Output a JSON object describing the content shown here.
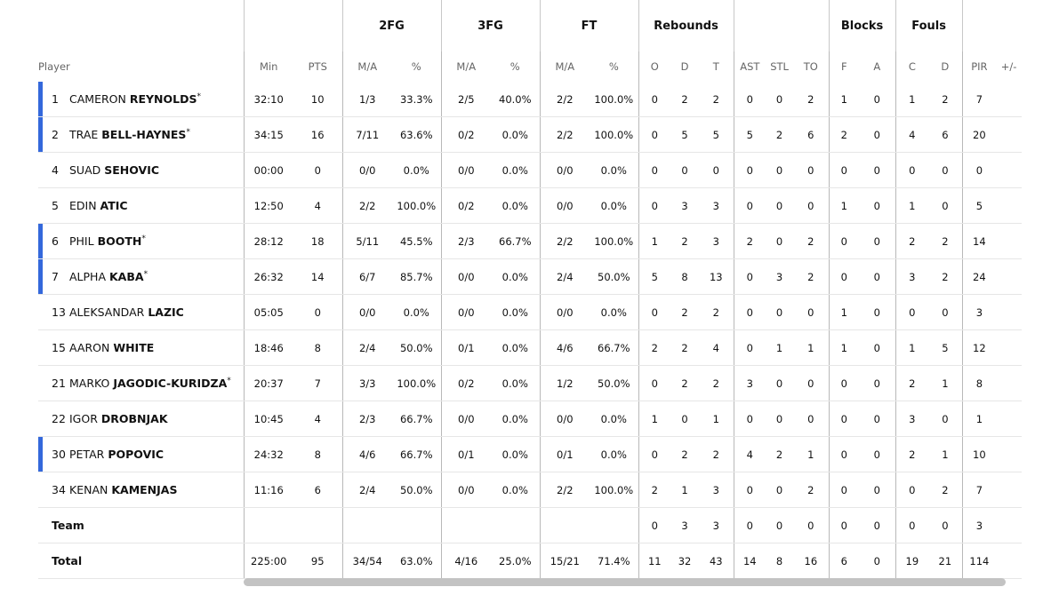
{
  "groups": {
    "fg2": "2FG",
    "fg3": "3FG",
    "ft": "FT",
    "rebounds": "Rebounds",
    "blocks": "Blocks",
    "fouls": "Fouls"
  },
  "headers": {
    "player": "Player",
    "min": "Min",
    "pts": "PTS",
    "fg2_ma": "M/A",
    "fg2_pct": "%",
    "fg3_ma": "M/A",
    "fg3_pct": "%",
    "ft_ma": "M/A",
    "ft_pct": "%",
    "o": "O",
    "d": "D",
    "t": "T",
    "ast": "AST",
    "stl": "STL",
    "to": "TO",
    "bf": "F",
    "ba": "A",
    "fc": "C",
    "fd": "D",
    "pir": "PIR",
    "pm": "+/-"
  },
  "players": [
    {
      "num": "1",
      "first": "CAMERON",
      "last": "REYNOLDS",
      "star": "*",
      "starter": true,
      "min": "32:10",
      "pts": "10",
      "fg2": "1/3",
      "fg2p": "33.3%",
      "fg3": "2/5",
      "fg3p": "40.0%",
      "ft": "2/2",
      "ftp": "100.0%",
      "o": "0",
      "d": "2",
      "t": "2",
      "ast": "0",
      "stl": "0",
      "to": "2",
      "bf": "1",
      "ba": "0",
      "fc": "1",
      "fd": "2",
      "pir": "7",
      "pm": ""
    },
    {
      "num": "2",
      "first": "TRAE",
      "last": "BELL-HAYNES",
      "star": "*",
      "starter": true,
      "min": "34:15",
      "pts": "16",
      "fg2": "7/11",
      "fg2p": "63.6%",
      "fg3": "0/2",
      "fg3p": "0.0%",
      "ft": "2/2",
      "ftp": "100.0%",
      "o": "0",
      "d": "5",
      "t": "5",
      "ast": "5",
      "stl": "2",
      "to": "6",
      "bf": "2",
      "ba": "0",
      "fc": "4",
      "fd": "6",
      "pir": "20",
      "pm": ""
    },
    {
      "num": "4",
      "first": "SUAD",
      "last": "SEHOVIC",
      "star": "",
      "starter": false,
      "min": "00:00",
      "pts": "0",
      "fg2": "0/0",
      "fg2p": "0.0%",
      "fg3": "0/0",
      "fg3p": "0.0%",
      "ft": "0/0",
      "ftp": "0.0%",
      "o": "0",
      "d": "0",
      "t": "0",
      "ast": "0",
      "stl": "0",
      "to": "0",
      "bf": "0",
      "ba": "0",
      "fc": "0",
      "fd": "0",
      "pir": "0",
      "pm": ""
    },
    {
      "num": "5",
      "first": "EDIN",
      "last": "ATIC",
      "star": "",
      "starter": false,
      "min": "12:50",
      "pts": "4",
      "fg2": "2/2",
      "fg2p": "100.0%",
      "fg3": "0/2",
      "fg3p": "0.0%",
      "ft": "0/0",
      "ftp": "0.0%",
      "o": "0",
      "d": "3",
      "t": "3",
      "ast": "0",
      "stl": "0",
      "to": "0",
      "bf": "1",
      "ba": "0",
      "fc": "1",
      "fd": "0",
      "pir": "5",
      "pm": ""
    },
    {
      "num": "6",
      "first": "PHIL",
      "last": "BOOTH",
      "star": "*",
      "starter": true,
      "min": "28:12",
      "pts": "18",
      "fg2": "5/11",
      "fg2p": "45.5%",
      "fg3": "2/3",
      "fg3p": "66.7%",
      "ft": "2/2",
      "ftp": "100.0%",
      "o": "1",
      "d": "2",
      "t": "3",
      "ast": "2",
      "stl": "0",
      "to": "2",
      "bf": "0",
      "ba": "0",
      "fc": "2",
      "fd": "2",
      "pir": "14",
      "pm": ""
    },
    {
      "num": "7",
      "first": "ALPHA",
      "last": "KABA",
      "star": "*",
      "starter": true,
      "min": "26:32",
      "pts": "14",
      "fg2": "6/7",
      "fg2p": "85.7%",
      "fg3": "0/0",
      "fg3p": "0.0%",
      "ft": "2/4",
      "ftp": "50.0%",
      "o": "5",
      "d": "8",
      "t": "13",
      "ast": "0",
      "stl": "3",
      "to": "2",
      "bf": "0",
      "ba": "0",
      "fc": "3",
      "fd": "2",
      "pir": "24",
      "pm": ""
    },
    {
      "num": "13",
      "first": "ALEKSANDAR",
      "last": "LAZIC",
      "star": "",
      "starter": false,
      "min": "05:05",
      "pts": "0",
      "fg2": "0/0",
      "fg2p": "0.0%",
      "fg3": "0/0",
      "fg3p": "0.0%",
      "ft": "0/0",
      "ftp": "0.0%",
      "o": "0",
      "d": "2",
      "t": "2",
      "ast": "0",
      "stl": "0",
      "to": "0",
      "bf": "1",
      "ba": "0",
      "fc": "0",
      "fd": "0",
      "pir": "3",
      "pm": ""
    },
    {
      "num": "15",
      "first": "AARON",
      "last": "WHITE",
      "star": "",
      "starter": false,
      "min": "18:46",
      "pts": "8",
      "fg2": "2/4",
      "fg2p": "50.0%",
      "fg3": "0/1",
      "fg3p": "0.0%",
      "ft": "4/6",
      "ftp": "66.7%",
      "o": "2",
      "d": "2",
      "t": "4",
      "ast": "0",
      "stl": "1",
      "to": "1",
      "bf": "1",
      "ba": "0",
      "fc": "1",
      "fd": "5",
      "pir": "12",
      "pm": ""
    },
    {
      "num": "21",
      "first": "MARKO",
      "last": "JAGODIC-KURIDZA",
      "star": "*",
      "starter": false,
      "min": "20:37",
      "pts": "7",
      "fg2": "3/3",
      "fg2p": "100.0%",
      "fg3": "0/2",
      "fg3p": "0.0%",
      "ft": "1/2",
      "ftp": "50.0%",
      "o": "0",
      "d": "2",
      "t": "2",
      "ast": "3",
      "stl": "0",
      "to": "0",
      "bf": "0",
      "ba": "0",
      "fc": "2",
      "fd": "1",
      "pir": "8",
      "pm": ""
    },
    {
      "num": "22",
      "first": "IGOR",
      "last": "DROBNJAK",
      "star": "",
      "starter": false,
      "min": "10:45",
      "pts": "4",
      "fg2": "2/3",
      "fg2p": "66.7%",
      "fg3": "0/0",
      "fg3p": "0.0%",
      "ft": "0/0",
      "ftp": "0.0%",
      "o": "1",
      "d": "0",
      "t": "1",
      "ast": "0",
      "stl": "0",
      "to": "0",
      "bf": "0",
      "ba": "0",
      "fc": "3",
      "fd": "0",
      "pir": "1",
      "pm": ""
    },
    {
      "num": "30",
      "first": "PETAR",
      "last": "POPOVIC",
      "star": "",
      "starter": true,
      "min": "24:32",
      "pts": "8",
      "fg2": "4/6",
      "fg2p": "66.7%",
      "fg3": "0/1",
      "fg3p": "0.0%",
      "ft": "0/1",
      "ftp": "0.0%",
      "o": "0",
      "d": "2",
      "t": "2",
      "ast": "4",
      "stl": "2",
      "to": "1",
      "bf": "0",
      "ba": "0",
      "fc": "2",
      "fd": "1",
      "pir": "10",
      "pm": ""
    },
    {
      "num": "34",
      "first": "KENAN",
      "last": "KAMENJAS",
      "star": "",
      "starter": false,
      "min": "11:16",
      "pts": "6",
      "fg2": "2/4",
      "fg2p": "50.0%",
      "fg3": "0/0",
      "fg3p": "0.0%",
      "ft": "2/2",
      "ftp": "100.0%",
      "o": "2",
      "d": "1",
      "t": "3",
      "ast": "0",
      "stl": "0",
      "to": "2",
      "bf": "0",
      "ba": "0",
      "fc": "0",
      "fd": "2",
      "pir": "7",
      "pm": ""
    }
  ],
  "team": {
    "label": "Team",
    "min": "",
    "pts": "",
    "fg2": "",
    "fg2p": "",
    "fg3": "",
    "fg3p": "",
    "ft": "",
    "ftp": "",
    "o": "0",
    "d": "3",
    "t": "3",
    "ast": "0",
    "stl": "0",
    "to": "0",
    "bf": "0",
    "ba": "0",
    "fc": "0",
    "fd": "0",
    "pir": "3",
    "pm": ""
  },
  "total": {
    "label": "Total",
    "min": "225:00",
    "pts": "95",
    "fg2": "34/54",
    "fg2p": "63.0%",
    "fg3": "4/16",
    "fg3p": "25.0%",
    "ft": "15/21",
    "ftp": "71.4%",
    "o": "11",
    "d": "32",
    "t": "43",
    "ast": "14",
    "stl": "8",
    "to": "16",
    "bf": "6",
    "ba": "0",
    "fc": "19",
    "fd": "21",
    "pir": "114",
    "pm": ""
  },
  "colors": {
    "starter_bar": "#3468db",
    "scrollbar": "#c3c3c3"
  }
}
